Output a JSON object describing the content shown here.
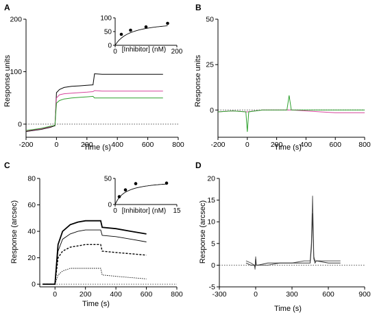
{
  "panels": {
    "A": {
      "label": "A",
      "xlabel": "Time (s)",
      "ylabel": "Response units",
      "xlim": [
        -200,
        800
      ],
      "ylim": [
        -25,
        200
      ],
      "xticks": [
        "-200",
        "0",
        "200",
        "400",
        "600",
        "800"
      ],
      "yticks": [
        "0",
        "100",
        "200"
      ],
      "inset": {
        "xlabel": "[Inhibitor] (nM)",
        "xlim": [
          0,
          200
        ],
        "ylim": [
          0,
          100
        ],
        "xticks": [
          "0",
          "200"
        ],
        "yticks": [
          "0",
          "50",
          "100"
        ]
      }
    },
    "B": {
      "label": "B",
      "xlabel": "Time (s)",
      "ylabel": "Response units",
      "xlim": [
        -200,
        800
      ],
      "ylim": [
        -15,
        50
      ],
      "xticks": [
        "-200",
        "0",
        "200",
        "400",
        "600",
        "800"
      ],
      "yticks": [
        "0",
        "25",
        "50"
      ]
    },
    "C": {
      "label": "C",
      "xlabel": "Time (s)",
      "ylabel": "Response (arcsec)",
      "xlim": [
        -100,
        800
      ],
      "ylim": [
        -2,
        80
      ],
      "xticks": [
        "0",
        "200",
        "400",
        "600",
        "800"
      ],
      "yticks": [
        "0",
        "20",
        "40",
        "60",
        "80"
      ],
      "inset": {
        "xlabel": "[Inhibitor] (nM)",
        "xlim": [
          0,
          15
        ],
        "ylim": [
          0,
          50
        ],
        "xticks": [
          "0",
          "15"
        ],
        "yticks": [
          "0",
          "50"
        ]
      }
    },
    "D": {
      "label": "D",
      "xlabel": "Time (s)",
      "ylabel": "Response (arcsec)",
      "xlim": [
        -300,
        900
      ],
      "ylim": [
        -5,
        20
      ],
      "xticks": [
        "-300",
        "0",
        "300",
        "600",
        "900"
      ],
      "yticks": [
        "-5",
        "0",
        "5",
        "10",
        "15",
        "20"
      ]
    }
  },
  "colors": {
    "green": "#2ca02c",
    "magenta": "#d6449b",
    "black": "#000000",
    "gray": "#555555"
  },
  "chart_data": [
    {
      "panel": "A",
      "type": "line",
      "xlabel": "Time (s)",
      "ylabel": "Response units",
      "xlim": [
        -200,
        800
      ],
      "ylim": [
        -25,
        200
      ],
      "grid": false,
      "series": [
        {
          "x": [
            -200,
            -100,
            -40,
            -20,
            -10,
            0,
            20,
            50,
            100,
            150,
            200,
            240,
            250,
            300,
            400,
            500,
            600,
            700
          ],
          "y": [
            -14,
            -10,
            -6,
            -4,
            -3,
            60,
            66,
            70,
            72,
            73,
            74,
            75,
            96,
            95,
            95,
            95,
            95,
            95
          ],
          "color": "#000000"
        },
        {
          "x": [
            -200,
            -100,
            -40,
            -20,
            -10,
            0,
            20,
            50,
            100,
            150,
            200,
            240,
            250,
            300,
            400,
            500,
            600,
            700
          ],
          "y": [
            -13,
            -9,
            -5,
            -3,
            -2,
            50,
            56,
            58,
            59,
            60,
            61,
            62,
            64,
            63,
            63,
            63,
            63,
            63
          ],
          "color": "#d6449b"
        },
        {
          "x": [
            -200,
            -100,
            -40,
            -20,
            -10,
            0,
            20,
            50,
            100,
            150,
            200,
            240,
            250,
            300,
            400,
            500,
            600,
            700
          ],
          "y": [
            -12,
            -8,
            -4,
            -3,
            -2,
            40,
            45,
            48,
            50,
            51,
            52,
            53,
            50,
            50,
            50,
            50,
            50,
            50
          ],
          "color": "#2ca02c"
        }
      ],
      "inset": {
        "type": "scatter",
        "xlabel": "[Inhibitor] (nM)",
        "x": [
          20,
          50,
          100,
          170
        ],
        "y": [
          40,
          55,
          67,
          80
        ]
      }
    },
    {
      "panel": "B",
      "type": "line",
      "xlabel": "Time (s)",
      "ylabel": "Response units",
      "xlim": [
        -200,
        800
      ],
      "ylim": [
        -15,
        50
      ],
      "grid": false,
      "series": [
        {
          "x": [
            -200,
            -100,
            0,
            100,
            200,
            280,
            300,
            400,
            500,
            600,
            700,
            800
          ],
          "y": [
            -1,
            -0.5,
            -1,
            0,
            0,
            0,
            0,
            -0.5,
            -1,
            -1.5,
            -1.5,
            -1.5
          ],
          "color": "#d6449b"
        },
        {
          "x": [
            -200,
            -100,
            -10,
            0,
            10,
            100,
            200,
            270,
            285,
            300,
            400,
            500,
            600,
            700,
            800
          ],
          "y": [
            -1,
            -0.5,
            -1,
            -12,
            -1,
            0,
            0,
            0,
            8,
            0,
            0,
            0,
            0,
            0,
            0
          ],
          "color": "#2ca02c"
        }
      ]
    },
    {
      "panel": "C",
      "type": "line",
      "xlabel": "Time (s)",
      "ylabel": "Response (arcsec)",
      "xlim": [
        -100,
        800
      ],
      "ylim": [
        -2,
        80
      ],
      "grid": false,
      "series": [
        {
          "x": [
            -80,
            0,
            20,
            50,
            100,
            150,
            200,
            250,
            300,
            310,
            400,
            500,
            600
          ],
          "y": [
            0,
            0,
            30,
            40,
            45,
            47,
            48,
            48,
            48,
            43,
            42,
            40,
            38
          ],
          "style": "solid-thick"
        },
        {
          "x": [
            -80,
            0,
            20,
            50,
            100,
            150,
            200,
            250,
            300,
            310,
            400,
            500,
            600
          ],
          "y": [
            0,
            0,
            25,
            34,
            38,
            40,
            41,
            41,
            41,
            37,
            36,
            34,
            32
          ],
          "style": "solid-thin"
        },
        {
          "x": [
            -80,
            0,
            20,
            50,
            100,
            150,
            200,
            250,
            300,
            310,
            400,
            500,
            600
          ],
          "y": [
            0,
            0,
            20,
            25,
            28,
            29,
            30,
            30,
            30,
            25,
            24,
            23,
            22
          ],
          "style": "dashed"
        },
        {
          "x": [
            -80,
            0,
            20,
            50,
            100,
            150,
            200,
            250,
            300,
            310,
            400,
            500,
            600
          ],
          "y": [
            0,
            0,
            7,
            10,
            12,
            12,
            12,
            12,
            12,
            7,
            6,
            5,
            4
          ],
          "style": "dotted"
        }
      ],
      "inset": {
        "type": "scatter",
        "xlabel": "[Inhibitor] (nM)",
        "x": [
          1,
          2.5,
          5,
          12.5
        ],
        "y": [
          15,
          28,
          40,
          41
        ]
      }
    },
    {
      "panel": "D",
      "type": "line",
      "xlabel": "Time (s)",
      "ylabel": "Response (arcsec)",
      "xlim": [
        -300,
        900
      ],
      "ylim": [
        -5,
        20
      ],
      "grid": false,
      "series": [
        {
          "x": [
            -80,
            -40,
            -10,
            -5,
            0,
            5,
            20,
            100,
            200,
            300,
            400,
            450,
            460,
            470,
            480,
            490,
            500,
            600,
            700
          ],
          "y": [
            1,
            0.5,
            0,
            -1,
            2,
            0,
            0,
            0,
            0.5,
            0.5,
            1,
            1,
            5,
            16,
            2,
            1,
            1,
            1,
            1
          ],
          "color": "#555555"
        },
        {
          "x": [
            -80,
            -40,
            -10,
            -5,
            0,
            5,
            20,
            100,
            200,
            300,
            400,
            450,
            460,
            470,
            480,
            490,
            500,
            600,
            700
          ],
          "y": [
            0.5,
            0,
            0,
            -0.5,
            1.5,
            0,
            0,
            0.5,
            0.5,
            0.5,
            0.5,
            0.5,
            4,
            12,
            1.5,
            0.5,
            1,
            0.5,
            0.5
          ],
          "color": "#333333"
        }
      ]
    }
  ]
}
